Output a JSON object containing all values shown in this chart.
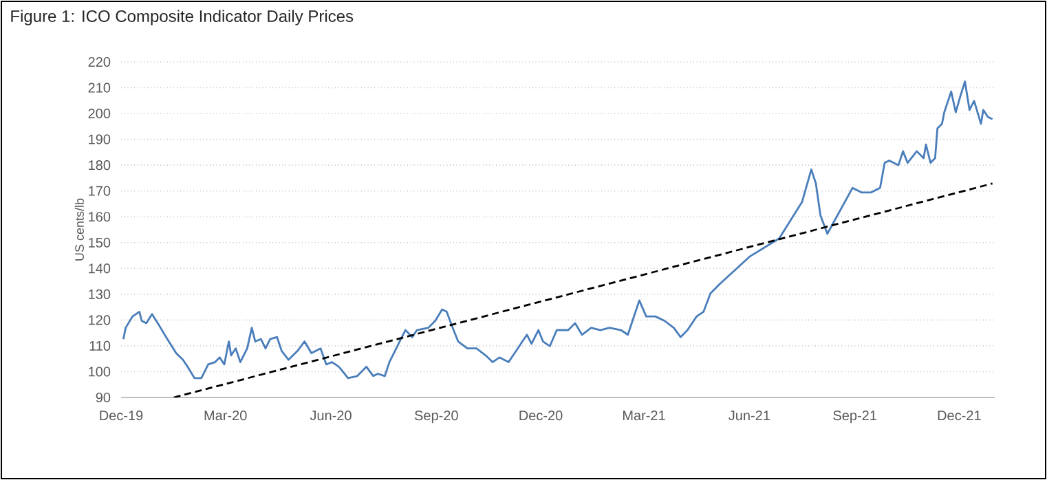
{
  "chart_data": {
    "type": "line",
    "title": "Figure 1: ICO Composite Indicator Daily Prices",
    "ylabel": "US cents/lb",
    "xlim": [
      "2019-12-01",
      "2022-01-01"
    ],
    "ylim": [
      90,
      220
    ],
    "xticks": [
      {
        "value": "2019-12-01",
        "label": "Dec-19"
      },
      {
        "value": "2020-03-01",
        "label": "Mar-20"
      },
      {
        "value": "2020-06-01",
        "label": "Jun-20"
      },
      {
        "value": "2020-09-01",
        "label": "Sep-20"
      },
      {
        "value": "2020-12-01",
        "label": "Dec-20"
      },
      {
        "value": "2021-03-01",
        "label": "Mar-21"
      },
      {
        "value": "2021-06-01",
        "label": "Jun-21"
      },
      {
        "value": "2021-09-01",
        "label": "Sep-21"
      },
      {
        "value": "2021-12-01",
        "label": "Dec-21"
      }
    ],
    "yticks": [
      90,
      100,
      110,
      120,
      130,
      140,
      150,
      160,
      170,
      180,
      190,
      200,
      210,
      220
    ],
    "grid": "y",
    "series": [
      {
        "color": "#4a7ebb",
        "line_style": "solid",
        "x": [
          "2019-12-03",
          "2019-12-05",
          "2019-12-11",
          "2019-12-17",
          "2019-12-19",
          "2019-12-23",
          "2019-12-28",
          "2020-01-02",
          "2020-01-08",
          "2020-01-18",
          "2020-01-24",
          "2020-01-28",
          "2020-02-03",
          "2020-02-09",
          "2020-02-15",
          "2020-02-21",
          "2020-02-25",
          "2020-02-29",
          "2020-03-04",
          "2020-03-06",
          "2020-03-10",
          "2020-03-14",
          "2020-03-20",
          "2020-03-24",
          "2020-03-27",
          "2020-04-01",
          "2020-04-05",
          "2020-04-09",
          "2020-04-15",
          "2020-04-19",
          "2020-04-25",
          "2020-05-03",
          "2020-05-09",
          "2020-05-15",
          "2020-05-23",
          "2020-05-28",
          "2020-06-02",
          "2020-06-08",
          "2020-06-16",
          "2020-06-24",
          "2020-07-02",
          "2020-07-08",
          "2020-07-12",
          "2020-07-18",
          "2020-07-22",
          "2020-07-26",
          "2020-08-01",
          "2020-08-05",
          "2020-08-11",
          "2020-08-15",
          "2020-08-25",
          "2020-08-31",
          "2020-09-06",
          "2020-09-10",
          "2020-09-16",
          "2020-09-20",
          "2020-09-28",
          "2020-10-06",
          "2020-10-14",
          "2020-10-20",
          "2020-10-26",
          "2020-11-03",
          "2020-11-11",
          "2020-11-15",
          "2020-11-19",
          "2020-11-23",
          "2020-11-29",
          "2020-12-03",
          "2020-12-09",
          "2020-12-15",
          "2020-12-25",
          "2020-12-31",
          "2021-01-06",
          "2021-01-14",
          "2021-01-22",
          "2021-01-30",
          "2021-02-09",
          "2021-02-15",
          "2021-02-25",
          "2021-03-03",
          "2021-03-11",
          "2021-03-19",
          "2021-03-27",
          "2021-04-02",
          "2021-04-08",
          "2021-04-16",
          "2021-04-22",
          "2021-04-28",
          "2021-05-06",
          "2021-06-01",
          "2021-06-27",
          "2021-07-17",
          "2021-07-25",
          "2021-07-29",
          "2021-08-02",
          "2021-08-08",
          "2021-08-30",
          "2021-09-07",
          "2021-09-15",
          "2021-09-23",
          "2021-09-27",
          "2021-10-01",
          "2021-10-09",
          "2021-10-13",
          "2021-10-17",
          "2021-10-25",
          "2021-10-31",
          "2021-11-02",
          "2021-11-06",
          "2021-11-10",
          "2021-11-12",
          "2021-11-16",
          "2021-11-18",
          "2021-11-24",
          "2021-11-28",
          "2021-12-02",
          "2021-12-06",
          "2021-12-10",
          "2021-12-14",
          "2021-12-20",
          "2021-12-22",
          "2021-12-26",
          "2021-12-30"
        ],
        "values": [
          112.6,
          117,
          121.4,
          123.2,
          119.7,
          118.8,
          122.3,
          118.8,
          114.3,
          107.2,
          104.6,
          101.9,
          97.5,
          97.5,
          102.8,
          103.7,
          105.5,
          102.8,
          111.7,
          106.3,
          109,
          103.7,
          109,
          117,
          111.7,
          112.6,
          109,
          112.6,
          113.4,
          108.1,
          104.6,
          108.1,
          111.7,
          107.2,
          109,
          102.8,
          103.7,
          101.9,
          97.5,
          98.3,
          101.9,
          98.3,
          99.2,
          98.3,
          103.7,
          107.2,
          112.6,
          116.1,
          113.4,
          116.1,
          117,
          119.7,
          124.1,
          123.2,
          116.1,
          111.7,
          109,
          109,
          106.3,
          103.7,
          105.5,
          103.7,
          109,
          111.7,
          114.3,
          110.8,
          116.1,
          111.7,
          109.9,
          116.1,
          116.1,
          118.8,
          114.3,
          117,
          116.1,
          117,
          116.1,
          114.3,
          127.6,
          121.4,
          121.4,
          119.7,
          117,
          113.4,
          116.1,
          121.4,
          123.2,
          130.3,
          133.9,
          144.5,
          151.6,
          165.8,
          178.3,
          172.9,
          160.5,
          153.4,
          171.2,
          169.4,
          169.4,
          171.2,
          180.9,
          181.8,
          180,
          185.4,
          180.9,
          185.4,
          182.7,
          188,
          180.9,
          182.7,
          194.2,
          196,
          200.5,
          208.5,
          200.5,
          206.7,
          212.4,
          201.4,
          204.9,
          196,
          201.4,
          198.7,
          197.8
        ]
      },
      {
        "type": "line",
        "color": "#000000",
        "line_style": "dashed",
        "x": [
          "2020-01-16",
          "2021-12-30"
        ],
        "values": [
          90,
          172.9
        ]
      }
    ]
  }
}
